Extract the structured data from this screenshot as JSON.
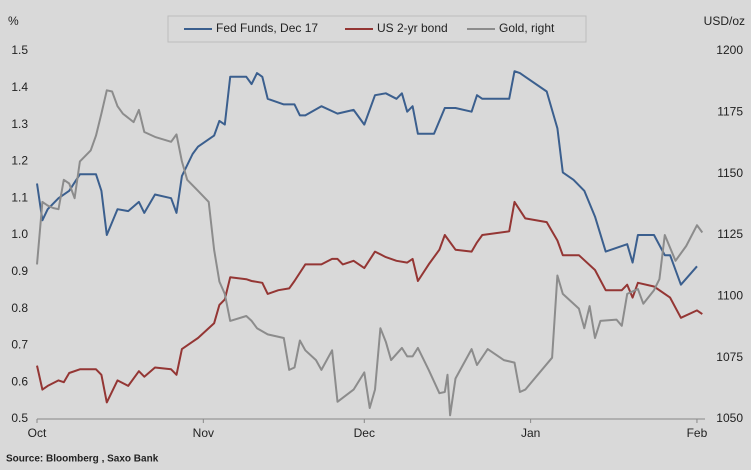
{
  "chart_data": {
    "type": "line",
    "y_label": "%",
    "y2_label": "USD/oz",
    "source": "Source: Bloomberg , Saxo Bank",
    "xlim": [
      0,
      124.5
    ],
    "xticks": [
      {
        "value": 0,
        "label": "Oct"
      },
      {
        "value": 31,
        "label": "Nov"
      },
      {
        "value": 61,
        "label": "Dec"
      },
      {
        "value": 92,
        "label": "Jan"
      },
      {
        "value": 123,
        "label": "Feb"
      }
    ],
    "ylim": [
      0.5,
      1.5
    ],
    "yticks": [
      0.5,
      0.6,
      0.7,
      0.8,
      0.9,
      {
        "value": 1,
        "label": "1.0"
      },
      1.1,
      1.2,
      1.3,
      1.4,
      1.5
    ],
    "y2lim": [
      1050,
      1200
    ],
    "y2ticks": [
      1050,
      1075,
      1100,
      1125,
      1150,
      1175,
      1200
    ],
    "grid": false,
    "legend": "top",
    "series": [
      {
        "name": "Fed Funds, Dec 17",
        "color": "#3b5f8e",
        "x": [
          0,
          1,
          2,
          4,
          6,
          8,
          11,
          12,
          13,
          15,
          17,
          19,
          20,
          22,
          25,
          26,
          27,
          29,
          30,
          33,
          34,
          35,
          36,
          39,
          40,
          41,
          42,
          43,
          46,
          48,
          49,
          50,
          53,
          56,
          59,
          61,
          63,
          65,
          67,
          68,
          69,
          70,
          71,
          74,
          76,
          78,
          81,
          82,
          83,
          88,
          89,
          90,
          91,
          95,
          97,
          98,
          100,
          102,
          104,
          106,
          110,
          111,
          112,
          115,
          117,
          118,
          120,
          123
        ],
        "values": [
          1.14,
          1.04,
          1.07,
          1.1,
          1.12,
          1.165,
          1.165,
          1.12,
          1.0,
          1.07,
          1.065,
          1.09,
          1.06,
          1.11,
          1.1,
          1.06,
          1.16,
          1.22,
          1.24,
          1.27,
          1.31,
          1.3,
          1.43,
          1.43,
          1.41,
          1.44,
          1.43,
          1.37,
          1.355,
          1.355,
          1.325,
          1.325,
          1.35,
          1.33,
          1.34,
          1.3,
          1.38,
          1.385,
          1.37,
          1.385,
          1.335,
          1.35,
          1.275,
          1.275,
          1.345,
          1.345,
          1.335,
          1.38,
          1.37,
          1.37,
          1.445,
          1.44,
          1.43,
          1.39,
          1.29,
          1.17,
          1.15,
          1.12,
          1.05,
          0.955,
          0.975,
          0.925,
          1.0,
          1.0,
          0.945,
          0.945,
          0.865,
          0.915
        ]
      },
      {
        "name": "US 2-yr bond",
        "color": "#943634",
        "x": [
          0,
          1,
          2,
          4,
          5,
          6,
          8,
          11,
          12,
          13,
          15,
          17,
          19,
          20,
          22,
          25,
          26,
          27,
          29,
          30,
          33,
          34,
          35,
          36,
          39,
          40,
          42,
          43,
          45,
          47,
          48,
          50,
          53,
          55,
          56,
          57,
          59,
          61,
          63,
          65,
          67,
          69,
          70,
          71,
          73,
          75,
          76,
          78,
          81,
          82,
          83,
          88,
          89,
          91,
          95,
          97,
          98,
          101,
          104,
          106,
          109,
          110,
          111,
          112,
          115,
          118,
          120,
          123,
          124
        ],
        "values": [
          0.645,
          0.58,
          0.59,
          0.605,
          0.6,
          0.625,
          0.635,
          0.635,
          0.62,
          0.545,
          0.605,
          0.59,
          0.63,
          0.615,
          0.64,
          0.635,
          0.62,
          0.69,
          0.71,
          0.72,
          0.76,
          0.81,
          0.825,
          0.885,
          0.88,
          0.875,
          0.87,
          0.84,
          0.85,
          0.855,
          0.875,
          0.92,
          0.92,
          0.935,
          0.935,
          0.92,
          0.93,
          0.91,
          0.955,
          0.94,
          0.93,
          0.925,
          0.935,
          0.875,
          0.92,
          0.96,
          1.0,
          0.96,
          0.955,
          0.98,
          1.0,
          1.01,
          1.09,
          1.045,
          1.035,
          0.985,
          0.945,
          0.945,
          0.905,
          0.85,
          0.85,
          0.865,
          0.83,
          0.87,
          0.86,
          0.83,
          0.775,
          0.795,
          0.785
        ]
      },
      {
        "name": "Gold, right",
        "color": "#8c8c8c",
        "axis": "y2",
        "x": [
          0,
          1,
          2,
          3,
          4,
          5,
          6,
          7,
          8,
          10,
          11,
          12,
          13,
          14,
          15,
          16,
          18,
          19,
          20,
          22,
          25,
          26,
          27,
          28,
          30,
          32,
          33,
          34,
          35,
          36,
          39,
          40,
          41,
          43,
          46,
          47,
          48,
          49,
          50,
          52,
          53,
          55,
          56,
          59,
          61,
          62,
          63,
          64,
          65,
          66,
          68,
          69,
          70,
          71,
          73,
          75,
          76,
          76.5,
          77,
          78,
          81,
          82,
          84,
          87,
          89,
          90,
          91,
          96,
          97,
          98,
          101,
          102,
          103,
          104,
          105,
          108,
          109,
          110,
          112,
          113,
          115,
          116,
          117,
          119,
          121,
          123,
          124
        ],
        "values": [
          1113,
          1138.5,
          1137,
          1136,
          1135.5,
          1147.5,
          1146,
          1140,
          1155,
          1159.5,
          1165.5,
          1174.5,
          1184,
          1183.5,
          1177.5,
          1174.5,
          1171,
          1176,
          1167,
          1165,
          1163,
          1166,
          1155,
          1147.5,
          1143,
          1138.5,
          1119,
          1106,
          1101,
          1090,
          1092,
          1090,
          1087,
          1084.5,
          1083,
          1070,
          1071,
          1082,
          1078,
          1074,
          1070,
          1078,
          1057,
          1062,
          1069,
          1054.5,
          1062,
          1087,
          1081.5,
          1074,
          1079,
          1075.5,
          1075.5,
          1079,
          1070,
          1060.5,
          1061,
          1068,
          1051.5,
          1066.5,
          1078.5,
          1072,
          1078.5,
          1074,
          1073,
          1061,
          1062,
          1075,
          1108.5,
          1101,
          1095,
          1087,
          1096,
          1083,
          1090,
          1090.5,
          1088,
          1101,
          1103,
          1097,
          1102.5,
          1107,
          1125,
          1114.5,
          1120.5,
          1129,
          1126
        ]
      }
    ]
  }
}
